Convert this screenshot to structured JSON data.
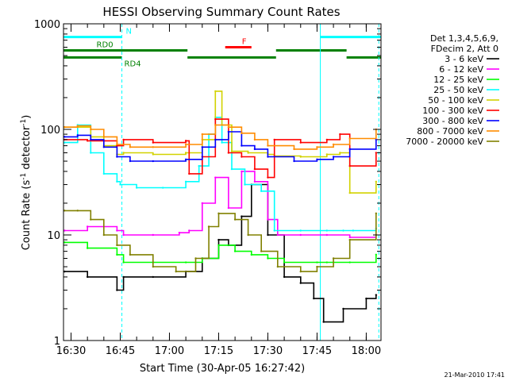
{
  "chart_data": {
    "type": "line",
    "title": "HESSI Observing Summary Count Rates",
    "xlabel": "Start Time (30-Apr-05 16:27:42)",
    "ylabel": "Count Rate (s",
    "ylabel_sup": "-1",
    "ylabel_mid": " detector",
    "ylabel_end": ")",
    "y_scale": "log",
    "ylim": [
      1,
      1000
    ],
    "xlim": [
      "16:27:42",
      "18:04:30"
    ],
    "x_ticks": [
      "16:30",
      "16:45",
      "17:00",
      "17:15",
      "17:30",
      "17:45",
      "18:00"
    ],
    "y_ticks": [
      "1",
      "10",
      "100",
      "1000"
    ],
    "legend_header": [
      "Det 1,3,4,5,6,9,",
      "FDecim 2, Att 0"
    ],
    "legend_position": "right",
    "series": [
      {
        "name": "3 - 6 keV",
        "color": "#000000",
        "x": [
          "16:28",
          "16:35",
          "16:44",
          "16:46",
          "16:55",
          "17:05",
          "17:10",
          "17:15",
          "17:18",
          "17:22",
          "17:25",
          "17:30",
          "17:35",
          "17:40",
          "17:44",
          "17:47",
          "17:53",
          "18:00",
          "18:03"
        ],
        "y": [
          4.5,
          4,
          3,
          4,
          4,
          4.5,
          6,
          9,
          8,
          15,
          30,
          10,
          4,
          3.5,
          2.5,
          1.5,
          2,
          2.5,
          2.7
        ]
      },
      {
        "name": "6 - 12 keV",
        "color": "#ff00ff",
        "x": [
          "16:28",
          "16:35",
          "16:44",
          "16:46",
          "16:55",
          "17:03",
          "17:06",
          "17:10",
          "17:14",
          "17:18",
          "17:22",
          "17:26",
          "17:30",
          "17:33",
          "17:40",
          "17:48",
          "17:55",
          "18:03"
        ],
        "y": [
          11,
          12,
          11,
          10,
          10,
          10.5,
          11,
          20,
          35,
          18,
          40,
          32,
          14,
          10,
          10,
          10,
          9.5,
          10
        ]
      },
      {
        "name": "12 - 25 keV",
        "color": "#00ff00",
        "x": [
          "16:28",
          "16:35",
          "16:44",
          "16:46",
          "16:55",
          "17:05",
          "17:10",
          "17:15",
          "17:20",
          "17:25",
          "17:30",
          "17:35",
          "17:45",
          "17:48",
          "17:55",
          "18:03"
        ],
        "y": [
          8.5,
          7.5,
          6.5,
          5.5,
          5.5,
          5.5,
          6,
          8,
          7,
          6.5,
          6,
          5.5,
          5.5,
          5.5,
          5.5,
          6.5
        ]
      },
      {
        "name": "25 - 50 keV",
        "color": "#00ffff",
        "x": [
          "16:28",
          "16:32",
          "16:36",
          "16:40",
          "16:44",
          "16:45",
          "16:50",
          "16:58",
          "17:05",
          "17:09",
          "17:12",
          "17:14",
          "17:16",
          "17:19",
          "17:23",
          "17:28",
          "17:32",
          "17:40",
          "17:48",
          "17:53",
          "17:56",
          "18:03"
        ],
        "y": [
          75,
          110,
          60,
          38,
          32,
          30,
          28,
          28,
          32,
          45,
          90,
          130,
          75,
          42,
          30,
          26,
          11,
          11,
          11,
          11,
          11,
          11.5
        ]
      },
      {
        "name": "50 - 100 keV",
        "color": "#d2d200",
        "x": [
          "16:28",
          "16:32",
          "16:36",
          "16:40",
          "16:44",
          "16:46",
          "16:55",
          "17:05",
          "17:10",
          "17:14",
          "17:16",
          "17:19",
          "17:24",
          "17:30",
          "17:32",
          "17:40",
          "17:48",
          "17:52",
          "17:55",
          "18:03"
        ],
        "y": [
          105,
          105,
          85,
          70,
          58,
          60,
          58,
          60,
          80,
          230,
          110,
          62,
          60,
          58,
          56,
          55,
          58,
          60,
          25,
          32
        ]
      },
      {
        "name": "100 - 300 keV",
        "color": "#ff0000",
        "x": [
          "16:28",
          "16:35",
          "16:44",
          "16:46",
          "16:55",
          "17:05",
          "17:06",
          "17:10",
          "17:14",
          "17:18",
          "17:22",
          "17:26",
          "17:30",
          "17:32",
          "17:40",
          "17:48",
          "17:52",
          "17:55",
          "18:03"
        ],
        "y": [
          80,
          78,
          70,
          80,
          75,
          78,
          38,
          55,
          125,
          60,
          55,
          42,
          35,
          80,
          75,
          80,
          90,
          45,
          60
        ]
      },
      {
        "name": "300 - 800 keV",
        "color": "#0000ff",
        "x": [
          "16:28",
          "16:32",
          "16:36",
          "16:40",
          "16:44",
          "16:48",
          "16:55",
          "17:05",
          "17:10",
          "17:14",
          "17:18",
          "17:22",
          "17:26",
          "17:30",
          "17:38",
          "17:45",
          "17:50",
          "17:55",
          "18:03"
        ],
        "y": [
          85,
          88,
          80,
          68,
          55,
          50,
          50,
          52,
          68,
          80,
          95,
          70,
          65,
          55,
          50,
          52,
          55,
          65,
          80
        ]
      },
      {
        "name": "800 - 7000 keV",
        "color": "#ff8c00",
        "x": [
          "16:28",
          "16:32",
          "16:36",
          "16:40",
          "16:44",
          "16:48",
          "16:55",
          "17:05",
          "17:10",
          "17:14",
          "17:18",
          "17:22",
          "17:26",
          "17:30",
          "17:38",
          "17:45",
          "17:50",
          "17:55",
          "18:03"
        ],
        "y": [
          105,
          108,
          100,
          85,
          72,
          68,
          68,
          72,
          90,
          110,
          105,
          92,
          80,
          70,
          65,
          68,
          72,
          82,
          100
        ]
      },
      {
        "name": "7000 - 20000 keV",
        "color": "#808000",
        "x": [
          "16:28",
          "16:32",
          "16:36",
          "16:40",
          "16:44",
          "16:48",
          "16:55",
          "17:02",
          "17:08",
          "17:12",
          "17:15",
          "17:20",
          "17:24",
          "17:28",
          "17:33",
          "17:40",
          "17:45",
          "17:50",
          "17:55",
          "18:03"
        ],
        "y": [
          17,
          17,
          14,
          10,
          8,
          6.5,
          5,
          4.5,
          6,
          12,
          16,
          14,
          10,
          7,
          5,
          4.5,
          5,
          6,
          9,
          16
        ]
      }
    ],
    "annotations": [
      {
        "label": "N",
        "color": "#00ffff",
        "y": 750,
        "segments": [
          [
            "16:27:42",
            "16:45:30"
          ],
          [
            "17:46:00",
            "18:04:30"
          ]
        ]
      },
      {
        "label": "RD0",
        "color": "#008000",
        "y": 560,
        "segments": [
          [
            "16:27:42",
            "16:45:30"
          ],
          [
            "16:45:30",
            "17:05:30"
          ],
          [
            "17:32:30",
            "17:54:00"
          ]
        ]
      },
      {
        "label": "RD4",
        "color": "#008000",
        "y": 480,
        "segments": [
          [
            "16:27:42",
            "16:45:30"
          ],
          [
            "17:05:30",
            "17:32:30"
          ],
          [
            "17:54:00",
            "18:04:30"
          ]
        ]
      },
      {
        "label": "F",
        "color": "#ff0000",
        "y": 600,
        "segments": [
          [
            "17:17:00",
            "17:25:00"
          ]
        ]
      }
    ],
    "vlines": [
      {
        "x": "16:45:30",
        "color": "#00ffff",
        "style": "dashed"
      },
      {
        "x": "17:46:00",
        "color": "#00ffff",
        "style": "solid"
      },
      {
        "x": "18:03:50",
        "color": "#00ffff",
        "style": "dashed"
      }
    ],
    "footer_stamp": "21-Mar-2010 17:41"
  }
}
